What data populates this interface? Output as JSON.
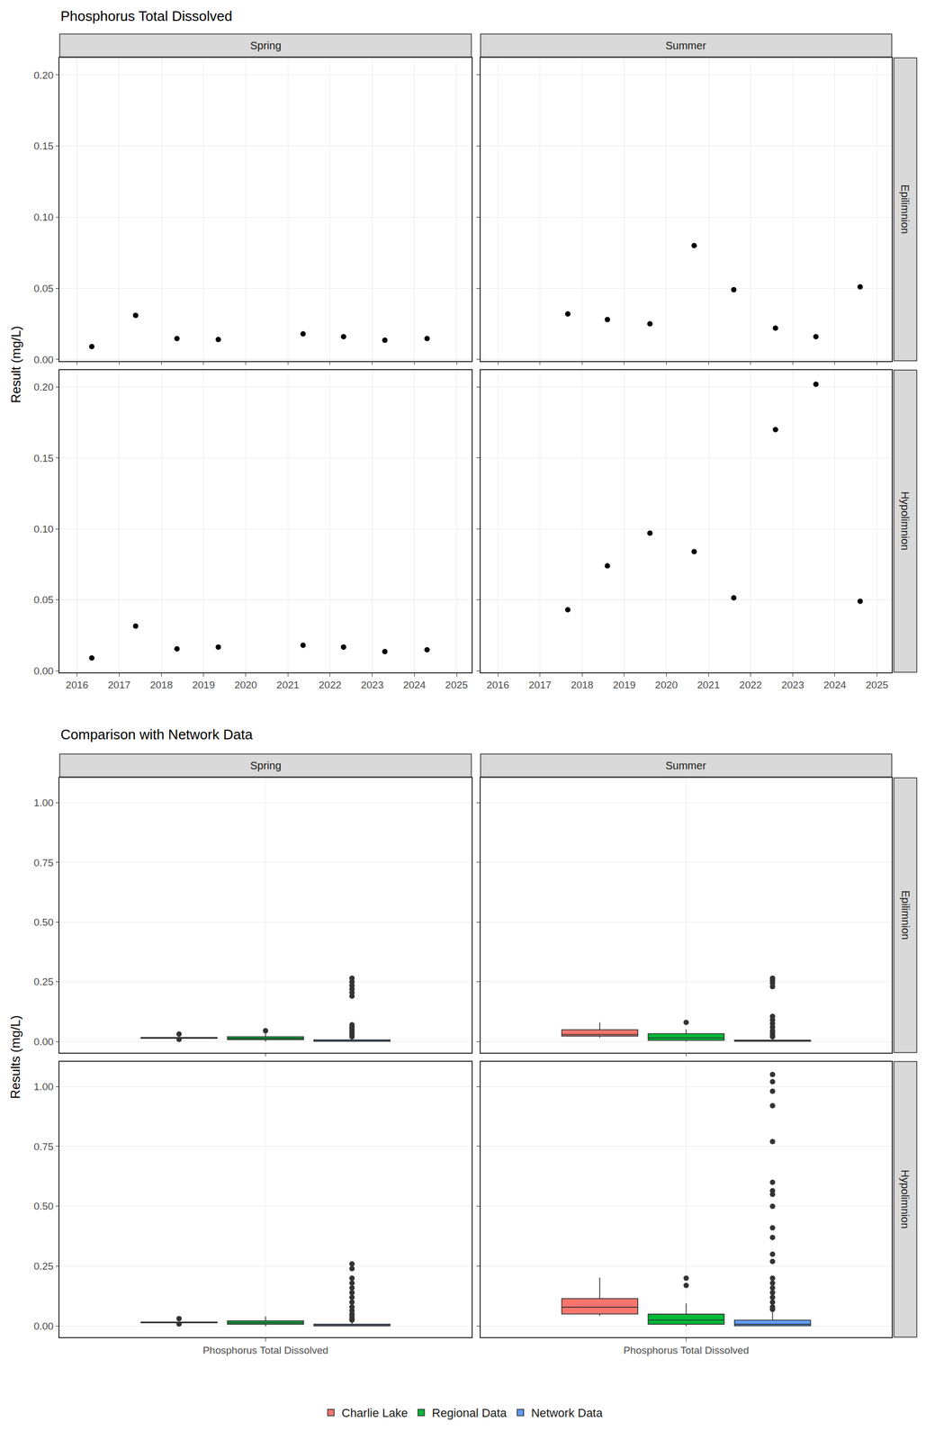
{
  "chart_data": [
    {
      "type": "scatter",
      "title": "Phosphorus Total Dissolved",
      "ylabel": "Result (mg/L)",
      "columns": [
        "Spring",
        "Summer"
      ],
      "rows": [
        "Epilimnion",
        "Hypolimnion"
      ],
      "color": "#000000",
      "marker": "circle",
      "grid": true,
      "xlim": [
        2015.59,
        2025.35
      ],
      "xticks": [
        2016,
        2017,
        2018,
        2019,
        2020,
        2021,
        2022,
        2023,
        2024,
        2025
      ],
      "ylim": [
        -0.001,
        0.212
      ],
      "yticks": [
        {
          "value": 0,
          "label": "0.00"
        },
        {
          "value": 0.05,
          "label": "0.05"
        },
        {
          "value": 0.1,
          "label": "0.10"
        },
        {
          "value": 0.15,
          "label": "0.15"
        },
        {
          "value": 0.2,
          "label": "0.20"
        }
      ],
      "panels": [
        {
          "column": "Spring",
          "row": "Epilimnion",
          "x": [
            2016.35,
            2017.39,
            2018.37,
            2019.35,
            2021.36,
            2022.32,
            2023.3,
            2024.3
          ],
          "values": [
            0.009,
            0.031,
            0.0147,
            0.014,
            0.018,
            0.016,
            0.0135,
            0.0147
          ]
        },
        {
          "column": "Summer",
          "row": "Epilimnion",
          "x": [
            2017.66,
            2018.6,
            2019.61,
            2020.66,
            2021.6,
            2022.59,
            2023.55,
            2024.6
          ],
          "values": [
            0.032,
            0.028,
            0.025,
            0.08,
            0.049,
            0.022,
            0.016,
            0.051
          ]
        },
        {
          "column": "Spring",
          "row": "Hypolimnion",
          "x": [
            2016.35,
            2017.39,
            2018.37,
            2019.35,
            2021.36,
            2022.32,
            2023.3,
            2024.3
          ],
          "values": [
            0.009,
            0.0315,
            0.0154,
            0.0167,
            0.018,
            0.0167,
            0.0135,
            0.0148
          ]
        },
        {
          "column": "Summer",
          "row": "Hypolimnion",
          "x": [
            2017.66,
            2018.6,
            2019.61,
            2020.66,
            2021.6,
            2022.59,
            2023.55,
            2024.6
          ],
          "values": [
            0.043,
            0.074,
            0.097,
            0.084,
            0.0514,
            0.17,
            0.202,
            0.049
          ]
        }
      ]
    },
    {
      "type": "box",
      "title": "Comparison with Network Data",
      "ylabel": "Results (mg/L)",
      "columns": [
        "Spring",
        "Summer"
      ],
      "rows": [
        "Epilimnion",
        "Hypolimnion"
      ],
      "categories": [
        "Phosphorus Total Dissolved"
      ],
      "grid": true,
      "legend": "bottom",
      "ylim": [
        -0.046,
        1.104
      ],
      "yticks": [
        {
          "value": 0,
          "label": "0.00"
        },
        {
          "value": 0.25,
          "label": "0.25"
        },
        {
          "value": 0.5,
          "label": "0.50"
        },
        {
          "value": 0.75,
          "label": "0.75"
        },
        {
          "value": 1,
          "label": "1.00"
        }
      ],
      "series": [
        {
          "name": "Charlie Lake",
          "color": "#F8766D"
        },
        {
          "name": "Regional Data",
          "color": "#00BA38"
        },
        {
          "name": "Network Data",
          "color": "#619CFF"
        }
      ],
      "panels": [
        {
          "column": "Spring",
          "row": "Epilimnion",
          "boxes": [
            {
              "series": "Charlie Lake",
              "q1": 0.0135,
              "median": 0.0147,
              "q3": 0.017,
              "lowerfence": 0.0135,
              "upperfence": 0.018,
              "outliers": [
                0.009,
                0.031
              ]
            },
            {
              "series": "Regional Data",
              "q1": 0.008,
              "median": 0.013,
              "q3": 0.02,
              "lowerfence": 0,
              "upperfence": 0.037,
              "outliers": [
                0.045
              ]
            },
            {
              "series": "Network Data",
              "q1": 0.001,
              "median": 0.003,
              "q3": 0.007,
              "lowerfence": 0,
              "upperfence": 0.016,
              "outliers": [
                0.265,
                0.25,
                0.235,
                0.22,
                0.205,
                0.19,
                0.07,
                0.06,
                0.05,
                0.04,
                0.03,
                0.02
              ]
            }
          ]
        },
        {
          "column": "Summer",
          "row": "Epilimnion",
          "boxes": [
            {
              "series": "Charlie Lake",
              "q1": 0.023,
              "median": 0.0295,
              "q3": 0.049,
              "lowerfence": 0.016,
              "upperfence": 0.08,
              "outliers": []
            },
            {
              "series": "Regional Data",
              "q1": 0.005,
              "median": 0.015,
              "q3": 0.033,
              "lowerfence": 0,
              "upperfence": 0.05,
              "outliers": [
                0.08
              ]
            },
            {
              "series": "Network Data",
              "q1": 0.001,
              "median": 0.003,
              "q3": 0.006,
              "lowerfence": 0,
              "upperfence": 0.013,
              "outliers": [
                0.265,
                0.255,
                0.245,
                0.23,
                0.105,
                0.09,
                0.075,
                0.06,
                0.045,
                0.035,
                0.025,
                0.02
              ]
            }
          ]
        },
        {
          "column": "Spring",
          "row": "Hypolimnion",
          "boxes": [
            {
              "series": "Charlie Lake",
              "q1": 0.014,
              "median": 0.0157,
              "q3": 0.017,
              "lowerfence": 0.0135,
              "upperfence": 0.018,
              "outliers": [
                0.009,
                0.0315
              ]
            },
            {
              "series": "Regional Data",
              "q1": 0.008,
              "median": 0.014,
              "q3": 0.022,
              "lowerfence": 0,
              "upperfence": 0.04,
              "outliers": []
            },
            {
              "series": "Network Data",
              "q1": 0.001,
              "median": 0.003,
              "q3": 0.008,
              "lowerfence": 0,
              "upperfence": 0.018,
              "outliers": [
                0.26,
                0.24,
                0.2,
                0.18,
                0.16,
                0.14,
                0.12,
                0.1,
                0.08,
                0.065,
                0.05,
                0.04,
                0.03,
                0.025
              ]
            }
          ]
        },
        {
          "column": "Summer",
          "row": "Hypolimnion",
          "boxes": [
            {
              "series": "Charlie Lake",
              "q1": 0.051,
              "median": 0.079,
              "q3": 0.115,
              "lowerfence": 0.043,
              "upperfence": 0.202,
              "outliers": []
            },
            {
              "series": "Regional Data",
              "q1": 0.008,
              "median": 0.025,
              "q3": 0.05,
              "lowerfence": 0,
              "upperfence": 0.095,
              "outliers": [
                0.17,
                0.2
              ]
            },
            {
              "series": "Network Data",
              "q1": 0.002,
              "median": 0.008,
              "q3": 0.025,
              "lowerfence": 0,
              "upperfence": 0.06,
              "outliers": [
                1.05,
                1.02,
                0.98,
                0.92,
                0.77,
                0.6,
                0.565,
                0.55,
                0.5,
                0.41,
                0.37,
                0.3,
                0.27,
                0.2,
                0.18,
                0.16,
                0.14,
                0.12,
                0.1,
                0.08,
                0.07
              ]
            }
          ]
        }
      ]
    }
  ]
}
